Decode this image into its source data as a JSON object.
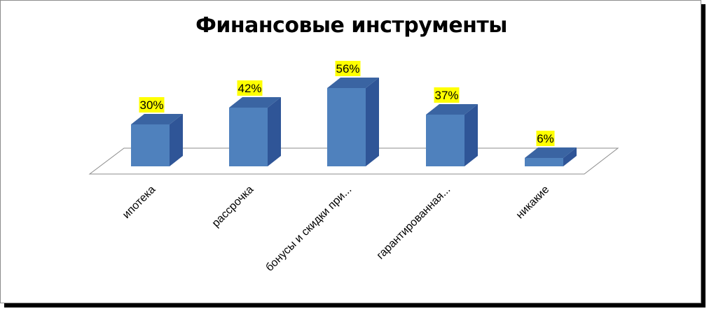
{
  "chart_data": {
    "type": "bar",
    "title": "Финансовые инструменты",
    "categories": [
      "ипотека",
      "рассрочка",
      "бонусы и скидки при...",
      "гарантированная...",
      "никакие"
    ],
    "values": [
      30,
      42,
      56,
      37,
      6
    ],
    "value_labels": [
      "30%",
      "42%",
      "56%",
      "37%",
      "6%"
    ],
    "unit": "%",
    "ylim": [
      0,
      56
    ],
    "grid": false,
    "legend": "none",
    "style": "3d-column",
    "colors": {
      "bar_front": "#4f81bd",
      "bar_side": "#2f5597",
      "bar_top": "#3a64a2",
      "label_background": "#ffff00",
      "floor_stroke": "#8c8c8c"
    }
  }
}
